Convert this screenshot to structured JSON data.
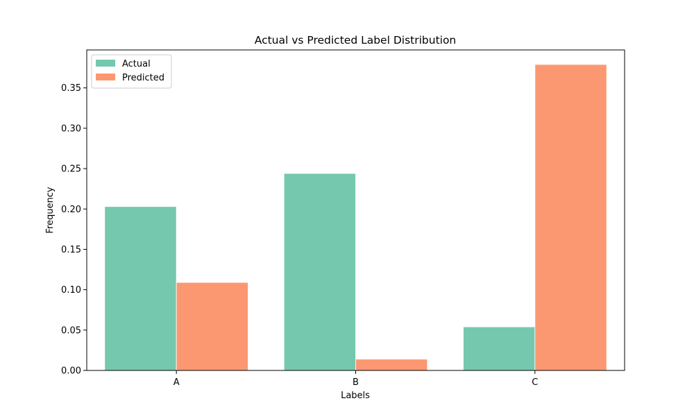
{
  "chart_data": {
    "type": "bar",
    "title": "Actual vs Predicted Label Distribution",
    "xlabel": "Labels",
    "ylabel": "Frequency",
    "categories": [
      "A",
      "B",
      "C"
    ],
    "series": [
      {
        "name": "Actual",
        "color": "#66c2a5",
        "values": [
          0.203,
          0.244,
          0.054
        ]
      },
      {
        "name": "Predicted",
        "color": "#fc8d62",
        "values": [
          0.109,
          0.014,
          0.379
        ]
      }
    ],
    "ylim": [
      0,
      0.397
    ],
    "yticks": [
      0.0,
      0.05,
      0.1,
      0.15,
      0.2,
      0.25,
      0.3,
      0.35
    ],
    "ytick_labels": [
      "0.00",
      "0.05",
      "0.10",
      "0.15",
      "0.20",
      "0.25",
      "0.30",
      "0.35"
    ],
    "grid": false,
    "legend_position": "upper-left"
  }
}
